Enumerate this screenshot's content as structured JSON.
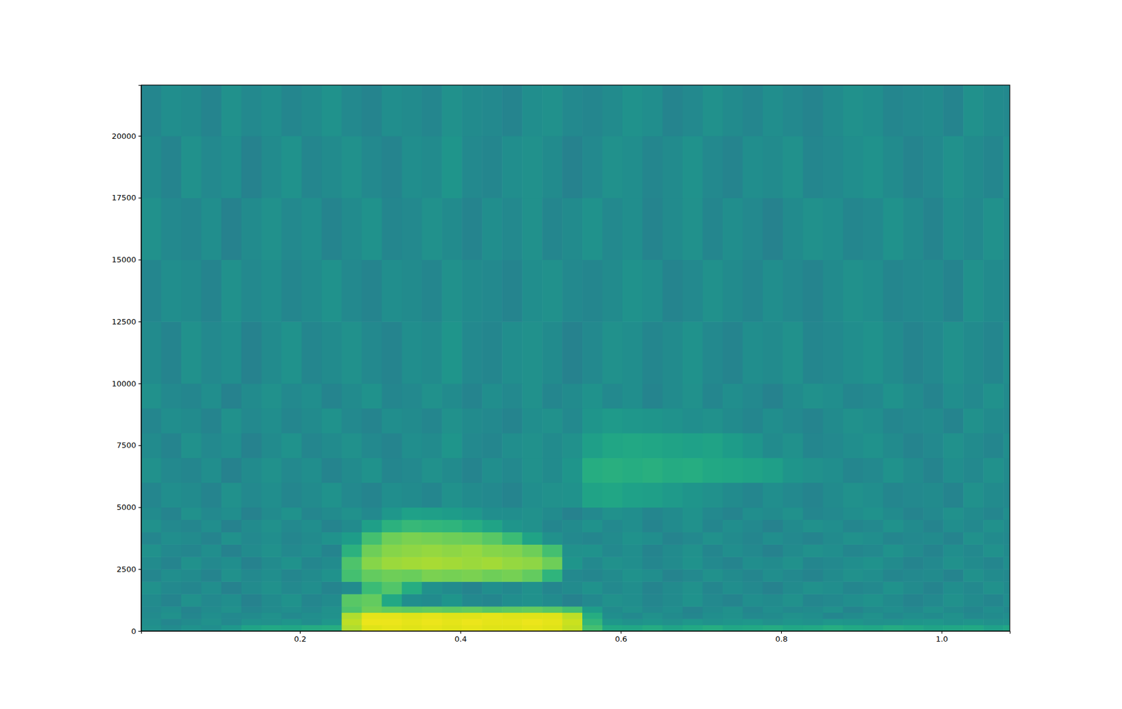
{
  "chart_data": {
    "type": "heatmap",
    "color": "viridis",
    "xlim": [
      0.002,
      1.085
    ],
    "ylim": [
      0,
      22050
    ],
    "xticks": [
      0.2,
      0.4,
      0.6,
      0.8,
      {
        "value": 1,
        "label": "1.0"
      }
    ],
    "yticks": [
      0,
      2500,
      5000,
      7500,
      10000,
      12500,
      15000,
      17500,
      20000
    ],
    "zlim": [
      -100,
      0
    ],
    "x_edges": [
      0.002,
      0.027,
      0.052,
      0.077,
      0.102,
      0.127,
      0.152,
      0.177,
      0.202,
      0.227,
      0.252,
      0.277,
      0.302,
      0.327,
      0.352,
      0.377,
      0.402,
      0.427,
      0.452,
      0.477,
      0.502,
      0.527,
      0.552,
      0.577,
      0.602,
      0.627,
      0.652,
      0.677,
      0.702,
      0.727,
      0.752,
      0.777,
      0.802,
      0.827,
      0.852,
      0.877,
      0.902,
      0.927,
      0.952,
      0.977,
      1.002,
      1.027,
      1.052,
      1.077,
      1.085
    ],
    "y_edges": [
      0,
      250,
      500,
      750,
      1000,
      1500,
      2000,
      2500,
      3000,
      3500,
      4000,
      4500,
      5000,
      6000,
      7000,
      8000,
      9000,
      10000,
      12500,
      15000,
      17500,
      20000,
      22050
    ],
    "cells": [
      [
        -50,
        -52,
        -49,
        -51,
        -47,
        -42,
        -40,
        -41,
        -39,
        -38,
        -12,
        -5,
        -4,
        -5,
        -4,
        -5,
        -4,
        -5,
        -5,
        -4,
        -5,
        -9,
        -30,
        -40,
        -41,
        -39,
        -42,
        -40,
        -38,
        -41,
        -40,
        -39,
        -41,
        -40,
        -38,
        -40,
        -41,
        -39,
        -40,
        -42,
        -41,
        -40,
        -43,
        -41
      ],
      [
        -51,
        -54,
        -52,
        -50,
        -53,
        -49,
        -50,
        -48,
        -51,
        -47,
        -10,
        -3,
        -3,
        -4,
        -3,
        -4,
        -3,
        -4,
        -4,
        -3,
        -4,
        -8,
        -34,
        -47,
        -49,
        -48,
        -50,
        -47,
        -49,
        -48,
        -47,
        -50,
        -48,
        -49,
        -47,
        -48,
        -50,
        -49,
        -48,
        -47,
        -49,
        -48,
        -50,
        -49
      ],
      [
        -52,
        -50,
        -54,
        -51,
        -53,
        -52,
        -50,
        -53,
        -51,
        -50,
        -12,
        -4,
        -4,
        -5,
        -4,
        -5,
        -5,
        -4,
        -5,
        -5,
        -5,
        -10,
        -38,
        -51,
        -53,
        -50,
        -52,
        -54,
        -51,
        -50,
        -53,
        -52,
        -50,
        -51,
        -54,
        -52,
        -50,
        -53,
        -51,
        -52,
        -50,
        -53,
        -52,
        -51
      ],
      [
        -53,
        -51,
        -55,
        -52,
        -50,
        -54,
        -52,
        -51,
        -53,
        -50,
        -28,
        -22,
        -24,
        -25,
        -24,
        -25,
        -24,
        -26,
        -25,
        -24,
        -26,
        -30,
        -45,
        -52,
        -50,
        -53,
        -51,
        -55,
        -52,
        -50,
        -54,
        -51,
        -53,
        -52,
        -50,
        -55,
        -52,
        -51,
        -53,
        -50,
        -52,
        -54,
        -51,
        -53
      ],
      [
        -52,
        -55,
        -50,
        -53,
        -51,
        -56,
        -52,
        -49,
        -54,
        -52,
        -26,
        -24,
        -40,
        -51,
        -52,
        -48,
        -53,
        -54,
        -51,
        -50,
        -52,
        -56,
        -53,
        -50,
        -51,
        -54,
        -52,
        -49,
        -53,
        -55,
        -51,
        -52,
        -50,
        -54,
        -53,
        -51,
        -49,
        -52,
        -55,
        -53,
        -50,
        -52,
        -54,
        -51
      ],
      [
        -50,
        -53,
        -54,
        -51,
        -56,
        -52,
        -50,
        -53,
        -51,
        -55,
        -52,
        -32,
        -27,
        -38,
        -50,
        -52,
        -55,
        -51,
        -53,
        -50,
        -54,
        -52,
        -49,
        -53,
        -51,
        -55,
        -52,
        -50,
        -54,
        -51,
        -53,
        -56,
        -52,
        -50,
        -51,
        -54,
        -53,
        -49,
        -52,
        -55,
        -51,
        -53,
        -50,
        -52
      ],
      [
        -54,
        -51,
        -52,
        -55,
        -50,
        -53,
        -51,
        -54,
        -52,
        -49,
        -30,
        -24,
        -22,
        -23,
        -20,
        -21,
        -20,
        -22,
        -21,
        -24,
        -35,
        -53,
        -54,
        -52,
        -49,
        -51,
        -55,
        -53,
        -50,
        -52,
        -54,
        -51,
        -53,
        -55,
        -52,
        -50,
        -51,
        -54,
        -53,
        -52,
        -55,
        -50,
        -52,
        -53
      ],
      [
        -52,
        -55,
        -50,
        -53,
        -51,
        -56,
        -52,
        -49,
        -54,
        -52,
        -28,
        -18,
        -15,
        -14,
        -13,
        -14,
        -15,
        -14,
        -16,
        -17,
        -22,
        -48,
        -53,
        -50,
        -51,
        -54,
        -52,
        -49,
        -53,
        -55,
        -51,
        -52,
        -50,
        -54,
        -53,
        -51,
        -49,
        -52,
        -55,
        -53,
        -50,
        -52,
        -54,
        -51
      ],
      [
        -50,
        -53,
        -54,
        -51,
        -56,
        -52,
        -50,
        -53,
        -51,
        -55,
        -36,
        -22,
        -18,
        -17,
        -16,
        -17,
        -16,
        -18,
        -19,
        -22,
        -30,
        -50,
        -49,
        -53,
        -51,
        -55,
        -52,
        -50,
        -54,
        -51,
        -53,
        -56,
        -52,
        -50,
        -51,
        -54,
        -53,
        -49,
        -52,
        -55,
        -51,
        -53,
        -50,
        -52
      ],
      [
        -54,
        -51,
        -52,
        -55,
        -50,
        -53,
        -51,
        -54,
        -52,
        -49,
        -45,
        -30,
        -22,
        -20,
        -21,
        -22,
        -23,
        -26,
        -32,
        -42,
        -50,
        -53,
        -54,
        -52,
        -49,
        -51,
        -55,
        -53,
        -50,
        -52,
        -54,
        -51,
        -53,
        -55,
        -52,
        -50,
        -51,
        -54,
        -53,
        -52,
        -55,
        -50,
        -52,
        -53
      ],
      [
        -50,
        -53,
        -54,
        -51,
        -56,
        -52,
        -50,
        -53,
        -51,
        -55,
        -52,
        -44,
        -36,
        -33,
        -34,
        -35,
        -38,
        -42,
        -48,
        -50,
        -54,
        -52,
        -49,
        -53,
        -51,
        -55,
        -52,
        -50,
        -54,
        -51,
        -53,
        -56,
        -52,
        -50,
        -51,
        -54,
        -53,
        -49,
        -52,
        -55,
        -51,
        -53,
        -50,
        -52
      ],
      [
        -52,
        -55,
        -50,
        -53,
        -51,
        -56,
        -52,
        -49,
        -54,
        -52,
        -50,
        -53,
        -47,
        -43,
        -44,
        -45,
        -47,
        -51,
        -51,
        -50,
        -52,
        -56,
        -53,
        -50,
        -51,
        -54,
        -52,
        -49,
        -53,
        -55,
        -51,
        -52,
        -50,
        -54,
        -53,
        -51,
        -49,
        -52,
        -55,
        -53,
        -50,
        -52,
        -54,
        -51
      ],
      [
        -54,
        -51,
        -52,
        -55,
        -50,
        -53,
        -51,
        -54,
        -52,
        -49,
        -53,
        -55,
        -51,
        -52,
        -54,
        -50,
        -52,
        -53,
        -55,
        -51,
        -50,
        -49,
        -42,
        -41,
        -43,
        -44,
        -46,
        -48,
        -50,
        -52,
        -54,
        -51,
        -53,
        -55,
        -52,
        -50,
        -51,
        -54,
        -53,
        -52,
        -55,
        -50,
        -52,
        -53
      ],
      [
        -50,
        -53,
        -54,
        -51,
        -56,
        -52,
        -50,
        -53,
        -51,
        -55,
        -52,
        -49,
        -54,
        -53,
        -50,
        -52,
        -55,
        -51,
        -53,
        -50,
        -52,
        -48,
        -38,
        -37,
        -38,
        -37,
        -39,
        -38,
        -40,
        -41,
        -42,
        -44,
        -48,
        -50,
        -51,
        -54,
        -53,
        -49,
        -52,
        -55,
        -51,
        -53,
        -50,
        -52
      ],
      [
        -52,
        -55,
        -50,
        -53,
        -51,
        -56,
        -52,
        -49,
        -54,
        -52,
        -50,
        -53,
        -55,
        -51,
        -52,
        -48,
        -53,
        -54,
        -51,
        -50,
        -52,
        -50,
        -44,
        -41,
        -40,
        -41,
        -42,
        -43,
        -42,
        -45,
        -48,
        -52,
        -50,
        -54,
        -53,
        -51,
        -49,
        -52,
        -55,
        -53,
        -50,
        -52,
        -54,
        -51
      ],
      [
        -54,
        -51,
        -52,
        -55,
        -50,
        -53,
        -51,
        -54,
        -52,
        -49,
        -53,
        -55,
        -51,
        -52,
        -54,
        -50,
        -52,
        -53,
        -55,
        -51,
        -50,
        -53,
        -48,
        -46,
        -47,
        -48,
        -49,
        -51,
        -50,
        -52,
        -54,
        -51,
        -53,
        -55,
        -52,
        -50,
        -51,
        -54,
        -53,
        -52,
        -55,
        -50,
        -52,
        -53
      ],
      [
        -50,
        -53,
        -54,
        -51,
        -56,
        -52,
        -50,
        -53,
        -51,
        -55,
        -52,
        -49,
        -54,
        -53,
        -50,
        -52,
        -55,
        -51,
        -53,
        -50,
        -54,
        -52,
        -49,
        -53,
        -51,
        -55,
        -52,
        -50,
        -54,
        -51,
        -53,
        -56,
        -52,
        -50,
        -51,
        -54,
        -53,
        -49,
        -52,
        -55,
        -51,
        -53,
        -50,
        -52
      ],
      [
        -52,
        -55,
        -50,
        -53,
        -51,
        -56,
        -52,
        -49,
        -54,
        -52,
        -50,
        -53,
        -55,
        -51,
        -52,
        -48,
        -53,
        -54,
        -51,
        -50,
        -52,
        -56,
        -53,
        -50,
        -51,
        -54,
        -52,
        -49,
        -53,
        -55,
        -51,
        -52,
        -50,
        -54,
        -53,
        -51,
        -49,
        -52,
        -55,
        -53,
        -50,
        -52,
        -54,
        -51
      ],
      [
        -54,
        -51,
        -52,
        -55,
        -50,
        -53,
        -51,
        -54,
        -52,
        -49,
        -53,
        -55,
        -51,
        -52,
        -54,
        -50,
        -52,
        -53,
        -55,
        -51,
        -50,
        -53,
        -54,
        -52,
        -49,
        -51,
        -55,
        -53,
        -50,
        -52,
        -54,
        -51,
        -53,
        -55,
        -52,
        -50,
        -51,
        -54,
        -53,
        -52,
        -55,
        -50,
        -52,
        -53
      ],
      [
        -50,
        -53,
        -54,
        -51,
        -56,
        -52,
        -50,
        -53,
        -51,
        -55,
        -52,
        -49,
        -54,
        -53,
        -50,
        -52,
        -55,
        -51,
        -53,
        -50,
        -54,
        -52,
        -49,
        -53,
        -51,
        -55,
        -52,
        -50,
        -54,
        -51,
        -53,
        -56,
        -52,
        -50,
        -51,
        -54,
        -53,
        -49,
        -52,
        -55,
        -51,
        -53,
        -50,
        -52
      ],
      [
        -52,
        -55,
        -50,
        -53,
        -51,
        -56,
        -52,
        -49,
        -54,
        -52,
        -50,
        -53,
        -55,
        -51,
        -52,
        -48,
        -53,
        -54,
        -51,
        -50,
        -52,
        -56,
        -53,
        -50,
        -51,
        -54,
        -52,
        -49,
        -53,
        -55,
        -51,
        -52,
        -50,
        -54,
        -53,
        -51,
        -49,
        -52,
        -55,
        -53,
        -50,
        -52,
        -54,
        -51
      ],
      [
        -54,
        -51,
        -52,
        -55,
        -50,
        -53,
        -51,
        -54,
        -52,
        -49,
        -53,
        -55,
        -51,
        -52,
        -54,
        -50,
        -52,
        -53,
        -55,
        -51,
        -50,
        -53,
        -54,
        -52,
        -49,
        -51,
        -55,
        -53,
        -50,
        -52,
        -54,
        -51,
        -53,
        -55,
        -52,
        -50,
        -51,
        -54,
        -53,
        -52,
        -55,
        -50,
        -52,
        -53
      ]
    ]
  }
}
